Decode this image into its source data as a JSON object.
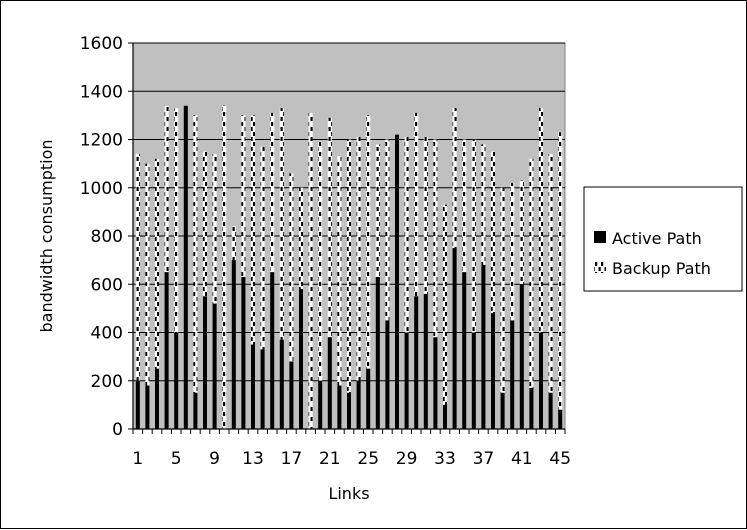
{
  "chart_data": {
    "type": "bar",
    "stacked": true,
    "xlabel": "Links",
    "ylabel": "bandwidth consumption",
    "ylim": [
      0,
      1600
    ],
    "yticks": [
      0,
      200,
      400,
      600,
      800,
      1000,
      1200,
      1400,
      1600
    ],
    "x_tick_labels": [
      "1",
      "5",
      "9",
      "13",
      "17",
      "21",
      "25",
      "29",
      "33",
      "37",
      "41",
      "45"
    ],
    "categories": [
      1,
      2,
      3,
      4,
      5,
      6,
      7,
      8,
      9,
      10,
      11,
      12,
      13,
      14,
      15,
      16,
      17,
      18,
      19,
      20,
      21,
      22,
      23,
      24,
      25,
      26,
      27,
      28,
      29,
      30,
      31,
      32,
      33,
      34,
      35,
      36,
      37,
      38,
      39,
      40,
      41,
      42,
      43,
      44,
      45
    ],
    "grid": true,
    "plot_background": "#c0c0c0",
    "legend_position": "right",
    "series": [
      {
        "name": "Active Path",
        "color": "#000000",
        "pattern": "solid",
        "values": [
          200,
          180,
          250,
          650,
          400,
          1340,
          150,
          550,
          520,
          0,
          700,
          630,
          350,
          330,
          650,
          370,
          280,
          580,
          0,
          200,
          380,
          180,
          150,
          200,
          250,
          630,
          450,
          1220,
          400,
          550,
          560,
          380,
          100,
          750,
          650,
          400,
          680,
          480,
          150,
          450,
          600,
          170,
          400,
          150,
          80
        ]
      },
      {
        "name": "Backup Path",
        "color": "#ffffff",
        "pattern": "dashed",
        "values": [
          940,
          920,
          870,
          690,
          930,
          0,
          1150,
          600,
          620,
          1340,
          140,
          670,
          950,
          840,
          660,
          960,
          780,
          420,
          1310,
          990,
          910,
          950,
          1050,
          1010,
          1050,
          550,
          750,
          0,
          810,
          760,
          650,
          820,
          830,
          580,
          550,
          800,
          500,
          670,
          850,
          570,
          430,
          950,
          930,
          990,
          1150
        ]
      }
    ]
  }
}
